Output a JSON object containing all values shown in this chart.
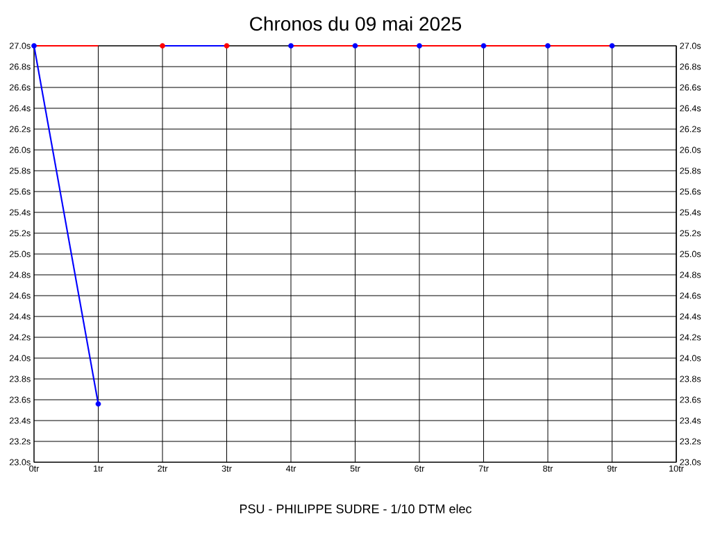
{
  "chart_data": {
    "type": "line",
    "title": "Chronos du 09 mai 2025",
    "xlabel": "PSU - PHILIPPE SUDRE - 1/10 DTM elec",
    "xlim": [
      0,
      10
    ],
    "xticks": [
      {
        "value": 0,
        "label": "0tr"
      },
      {
        "value": 1,
        "label": "1tr"
      },
      {
        "value": 2,
        "label": "2tr"
      },
      {
        "value": 3,
        "label": "3tr"
      },
      {
        "value": 4,
        "label": "4tr"
      },
      {
        "value": 5,
        "label": "5tr"
      },
      {
        "value": 6,
        "label": "6tr"
      },
      {
        "value": 7,
        "label": "7tr"
      },
      {
        "value": 8,
        "label": "8tr"
      },
      {
        "value": 9,
        "label": "9tr"
      },
      {
        "value": 10,
        "label": "10tr"
      }
    ],
    "ylim": [
      23.0,
      27.0
    ],
    "yticks": [
      {
        "value": 23.0,
        "label": "23.0s"
      },
      {
        "value": 23.2,
        "label": "23.2s"
      },
      {
        "value": 23.4,
        "label": "23.4s"
      },
      {
        "value": 23.6,
        "label": "23.6s"
      },
      {
        "value": 23.8,
        "label": "23.8s"
      },
      {
        "value": 24.0,
        "label": "24.0s"
      },
      {
        "value": 24.2,
        "label": "24.2s"
      },
      {
        "value": 24.4,
        "label": "24.4s"
      },
      {
        "value": 24.6,
        "label": "24.6s"
      },
      {
        "value": 24.8,
        "label": "24.8s"
      },
      {
        "value": 25.0,
        "label": "25.0s"
      },
      {
        "value": 25.2,
        "label": "25.2s"
      },
      {
        "value": 25.4,
        "label": "25.4s"
      },
      {
        "value": 25.6,
        "label": "25.6s"
      },
      {
        "value": 25.8,
        "label": "25.8s"
      },
      {
        "value": 26.0,
        "label": "26.0s"
      },
      {
        "value": 26.2,
        "label": "26.2s"
      },
      {
        "value": 26.4,
        "label": "26.4s"
      },
      {
        "value": 26.6,
        "label": "26.6s"
      },
      {
        "value": 26.8,
        "label": "26.8s"
      },
      {
        "value": 27.0,
        "label": "27.0s"
      }
    ],
    "y2lim": [
      23.0,
      27.0
    ],
    "y2ticks": [
      {
        "value": 23.0,
        "label": "23.0s"
      },
      {
        "value": 23.2,
        "label": "23.2s"
      },
      {
        "value": 23.4,
        "label": "23.4s"
      },
      {
        "value": 23.6,
        "label": "23.6s"
      },
      {
        "value": 23.8,
        "label": "23.8s"
      },
      {
        "value": 24.0,
        "label": "24.0s"
      },
      {
        "value": 24.2,
        "label": "24.2s"
      },
      {
        "value": 24.4,
        "label": "24.4s"
      },
      {
        "value": 24.6,
        "label": "24.6s"
      },
      {
        "value": 24.8,
        "label": "24.8s"
      },
      {
        "value": 25.0,
        "label": "25.0s"
      },
      {
        "value": 25.2,
        "label": "25.2s"
      },
      {
        "value": 25.4,
        "label": "25.4s"
      },
      {
        "value": 25.6,
        "label": "25.6s"
      },
      {
        "value": 25.8,
        "label": "25.8s"
      },
      {
        "value": 26.0,
        "label": "26.0s"
      },
      {
        "value": 26.2,
        "label": "26.2s"
      },
      {
        "value": 26.4,
        "label": "26.4s"
      },
      {
        "value": 26.6,
        "label": "26.6s"
      },
      {
        "value": 26.8,
        "label": "26.8s"
      },
      {
        "value": 27.0,
        "label": "27.0s"
      }
    ],
    "grid": true,
    "legend": false,
    "line_style": "solid",
    "series": [
      {
        "color": "#ff0000",
        "x": [
          0,
          1
        ],
        "values": [
          27.0,
          27.0
        ]
      },
      {
        "color": "#0000ff",
        "x": [
          0,
          1
        ],
        "values": [
          27.0,
          23.56
        ]
      },
      {
        "color": "#0000ff",
        "x": [
          2,
          3
        ],
        "values": [
          27.0,
          27.0
        ]
      },
      {
        "color": "#ff0000",
        "x": [
          4,
          5,
          6,
          7,
          8,
          9
        ],
        "values": [
          27.0,
          27.0,
          27.0,
          27.0,
          27.0,
          27.0
        ]
      },
      {
        "type": "scatter",
        "color": "#ff0000",
        "x": [
          2,
          3
        ],
        "values": [
          27.0,
          27.0
        ]
      },
      {
        "type": "scatter",
        "color": "#0000ff",
        "x": [
          0,
          1,
          4,
          5,
          6,
          7,
          8,
          9
        ],
        "values": [
          27.0,
          23.56,
          27.0,
          27.0,
          27.0,
          27.0,
          27.0,
          27.0
        ]
      }
    ]
  }
}
